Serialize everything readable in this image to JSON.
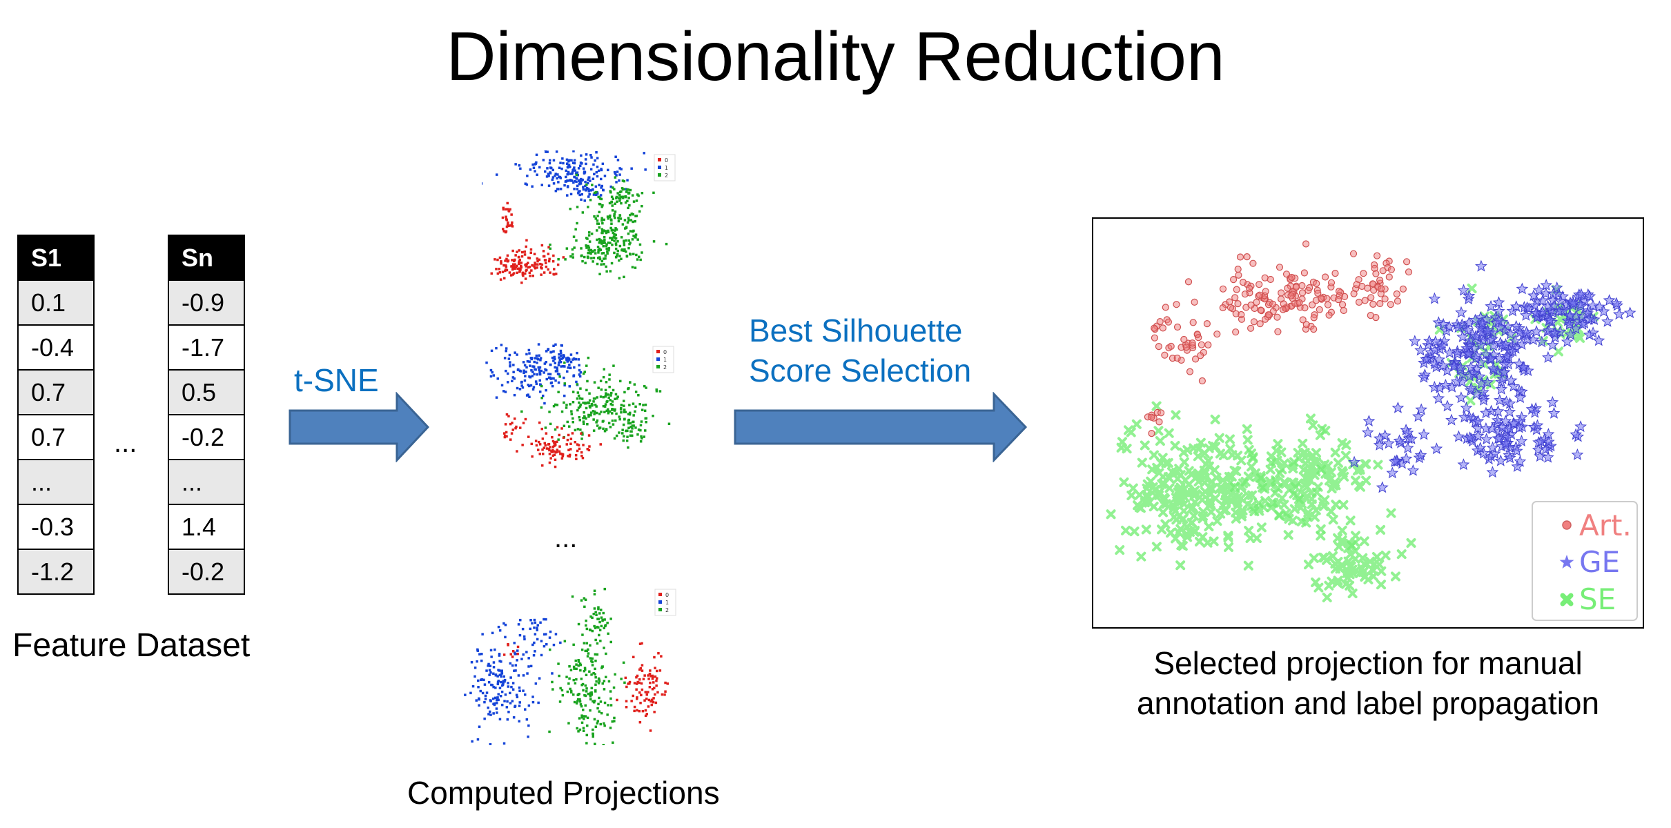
{
  "title": "Dimensionality Reduction",
  "feature_dataset": {
    "caption": "Feature Dataset",
    "ellipsis": "...",
    "columns": [
      {
        "header": "S1",
        "values": [
          "0.1",
          "-0.4",
          "0.7",
          "0.7",
          "...",
          "-0.3",
          "-1.2"
        ]
      },
      {
        "header": "Sn",
        "values": [
          "-0.9",
          "-1.7",
          "0.5",
          "-0.2",
          "...",
          "1.4",
          "-0.2"
        ]
      }
    ]
  },
  "tsne_label": "t-SNE",
  "computed_projections": {
    "caption": "Computed Projections",
    "ellipsis": "...",
    "legend_labels": [
      "0",
      "1",
      "2"
    ],
    "colors": [
      "#e0201c",
      "#1544d8",
      "#19a31f"
    ]
  },
  "selection_label": {
    "line1": "Best Silhouette",
    "line2": "Score Selection"
  },
  "selected_projection": {
    "caption_line1": "Selected projection for manual",
    "caption_line2": "annotation and label propagation",
    "legend": [
      {
        "label": "Art.",
        "color": "#f08080",
        "marker": "circle"
      },
      {
        "label": "GE",
        "color": "#7777f0",
        "marker": "star"
      },
      {
        "label": "SE",
        "color": "#77ee77",
        "marker": "x"
      }
    ]
  },
  "arrow_color": "#4f81bd"
}
